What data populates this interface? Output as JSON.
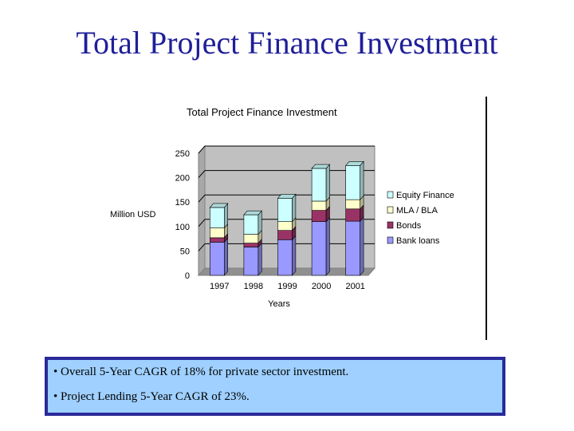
{
  "slide": {
    "title": "Total Project Finance Investment"
  },
  "notes": [
    "• Overall 5-Year CAGR of 18% for private sector investment.",
    "• Project Lending 5-Year CAGR of 23%."
  ],
  "chart_data": {
    "type": "bar",
    "stacked": true,
    "three_d": true,
    "title": "Total Project Finance Investment",
    "xlabel": "Years",
    "ylabel": "Million USD",
    "categories": [
      "1997",
      "1998",
      "1999",
      "2000",
      "2001"
    ],
    "ylim": [
      0,
      250
    ],
    "yticks": [
      0,
      50,
      100,
      150,
      200,
      250
    ],
    "grid": true,
    "legend_position": "right",
    "series": [
      {
        "name": "Bank loans",
        "color": "#9999ff",
        "values": [
          68,
          58,
          73,
          110,
          111
        ]
      },
      {
        "name": "Bonds",
        "color": "#993366",
        "values": [
          9,
          8,
          19,
          23,
          25
        ]
      },
      {
        "name": "MLA / BLA",
        "color": "#ffffcc",
        "values": [
          20,
          18,
          18,
          19,
          19
        ]
      },
      {
        "name": "Equity Finance",
        "color": "#ccffff",
        "values": [
          42,
          40,
          48,
          67,
          70
        ]
      }
    ]
  }
}
